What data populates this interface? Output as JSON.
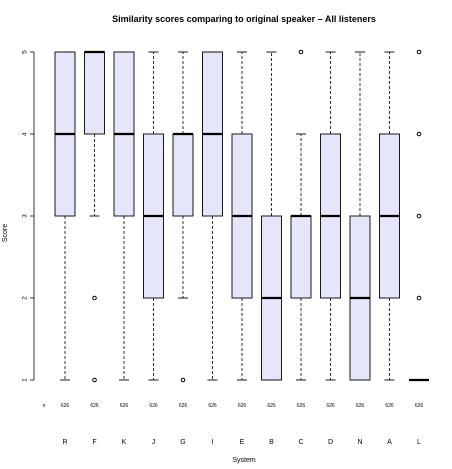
{
  "chart_data": {
    "type": "boxplot",
    "title": "Similarity scores comparing to original speaker – All listeners",
    "xlabel": "System",
    "ylabel": "Score",
    "ylim": [
      1,
      5
    ],
    "yticks": [
      1,
      2,
      3,
      4,
      5
    ],
    "n_prefix": "n",
    "grid": false,
    "box_fill": "#e6e6fa",
    "systems": [
      {
        "name": "R",
        "n": "626",
        "q1": 3,
        "median": 4,
        "q3": 5,
        "whisker_low": 1,
        "whisker_high": 5,
        "outliers": []
      },
      {
        "name": "F",
        "n": "626",
        "q1": 4,
        "median": 5,
        "q3": 5,
        "whisker_low": 3,
        "whisker_high": 5,
        "outliers": [
          2,
          1
        ]
      },
      {
        "name": "K",
        "n": "626",
        "q1": 3,
        "median": 4,
        "q3": 5,
        "whisker_low": 1,
        "whisker_high": 5,
        "outliers": []
      },
      {
        "name": "J",
        "n": "626",
        "q1": 2,
        "median": 3,
        "q3": 4,
        "whisker_low": 1,
        "whisker_high": 5,
        "outliers": []
      },
      {
        "name": "G",
        "n": "626",
        "q1": 3,
        "median": 4,
        "q3": 4,
        "whisker_low": 2,
        "whisker_high": 5,
        "outliers": [
          1
        ]
      },
      {
        "name": "I",
        "n": "626",
        "q1": 3,
        "median": 4,
        "q3": 5,
        "whisker_low": 1,
        "whisker_high": 5,
        "outliers": []
      },
      {
        "name": "E",
        "n": "626",
        "q1": 2,
        "median": 3,
        "q3": 4,
        "whisker_low": 1,
        "whisker_high": 5,
        "outliers": []
      },
      {
        "name": "B",
        "n": "626",
        "q1": 1,
        "median": 2,
        "q3": 3,
        "whisker_low": 1,
        "whisker_high": 5,
        "outliers": []
      },
      {
        "name": "C",
        "n": "626",
        "q1": 2,
        "median": 3,
        "q3": 3,
        "whisker_low": 1,
        "whisker_high": 4,
        "outliers": [
          5
        ]
      },
      {
        "name": "D",
        "n": "626",
        "q1": 2,
        "median": 3,
        "q3": 4,
        "whisker_low": 1,
        "whisker_high": 5,
        "outliers": []
      },
      {
        "name": "N",
        "n": "626",
        "q1": 1,
        "median": 2,
        "q3": 3,
        "whisker_low": 1,
        "whisker_high": 5,
        "outliers": []
      },
      {
        "name": "A",
        "n": "626",
        "q1": 2,
        "median": 3,
        "q3": 4,
        "whisker_low": 1,
        "whisker_high": 5,
        "outliers": []
      },
      {
        "name": "L",
        "n": "626",
        "q1": 1,
        "median": 1,
        "q3": 1,
        "whisker_low": 1,
        "whisker_high": 1,
        "outliers": [
          2,
          3,
          4,
          5
        ]
      }
    ]
  }
}
